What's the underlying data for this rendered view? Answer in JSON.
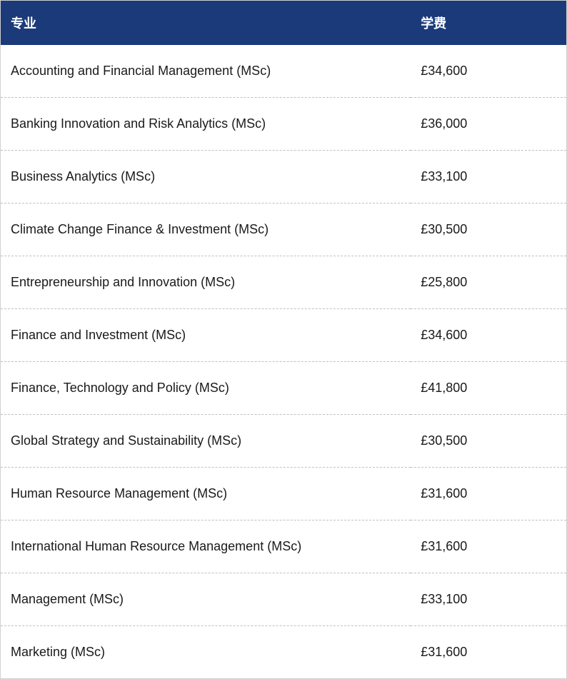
{
  "table": {
    "type": "table",
    "header_bg_color": "#1b3a7a",
    "header_text_color": "#ffffff",
    "header_fontsize": 18,
    "body_fontsize": 18,
    "body_text_color": "#1a1a1a",
    "row_divider_style": "dashed",
    "row_divider_color": "#c0c0c0",
    "column_widths_pct": [
      72.5,
      27.5
    ],
    "columns": [
      "专业",
      "学费"
    ],
    "rows": [
      [
        "Accounting and Financial Management (MSc)",
        "£34,600"
      ],
      [
        "Banking Innovation and Risk Analytics (MSc)",
        "£36,000"
      ],
      [
        "Business Analytics (MSc)",
        "£33,100"
      ],
      [
        "Climate Change Finance & Investment (MSc)",
        "£30,500"
      ],
      [
        "Entrepreneurship and Innovation (MSc)",
        "£25,800"
      ],
      [
        "Finance and Investment (MSc)",
        "£34,600"
      ],
      [
        "Finance, Technology and Policy (MSc)",
        "£41,800"
      ],
      [
        "Global Strategy and Sustainability (MSc)",
        "£30,500"
      ],
      [
        "Human Resource Management (MSc)",
        "£31,600"
      ],
      [
        "International Human Resource Management (MSc)",
        "£31,600"
      ],
      [
        "Management (MSc)",
        "£33,100"
      ],
      [
        "Marketing (MSc)",
        "£31,600"
      ]
    ]
  }
}
